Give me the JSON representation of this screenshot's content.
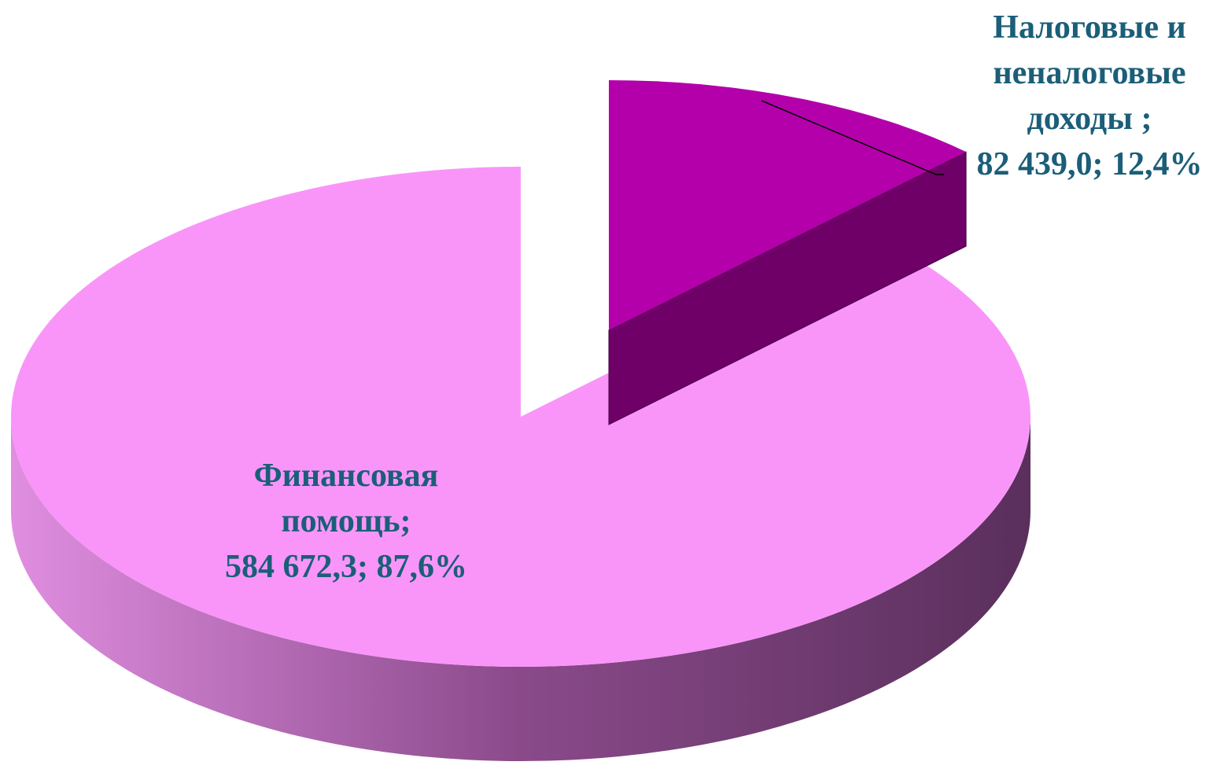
{
  "chart_data": {
    "type": "pie3d",
    "categories": [
      "Налоговые и неналоговые доходы ;",
      "Финансовая помощь;"
    ],
    "values": [
      82439.0,
      584672.3
    ],
    "value_labels": [
      "82 439,0;",
      "584 672,3;"
    ],
    "percents": [
      12.4,
      87.6
    ],
    "percent_labels": [
      "12,4%",
      "87,6%"
    ],
    "colors": [
      "#b400aa",
      "#f995f9"
    ],
    "exploded": [
      true,
      false
    ]
  }
}
